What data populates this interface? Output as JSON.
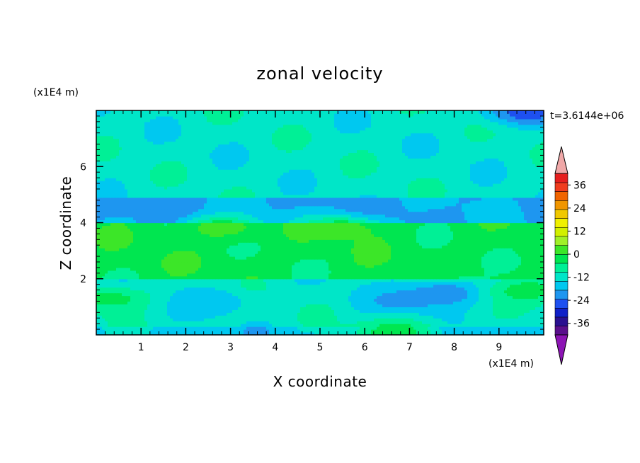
{
  "chart_data": {
    "type": "heatmap",
    "title": "zonal velocity",
    "xlabel": "X coordinate",
    "ylabel": "Z coordinate",
    "x_scale_label": "(x1E4 m)",
    "y_scale_label": "(x1E4 m)",
    "time_label": "t=3.6144e+06",
    "xlim": [
      0,
      10
    ],
    "ylim": [
      0,
      8
    ],
    "x_ticks": [
      "1",
      "2",
      "3",
      "4",
      "5",
      "6",
      "7",
      "8",
      "9"
    ],
    "x_tick_values": [
      1,
      2,
      3,
      4,
      5,
      6,
      7,
      8,
      9
    ],
    "y_ticks": [
      "2",
      "4",
      "6"
    ],
    "y_tick_values": [
      2,
      4,
      6
    ],
    "colorbar": {
      "labels": [
        "36",
        "24",
        "12",
        "0",
        "-12",
        "-24",
        "-36"
      ],
      "label_values": [
        36,
        24,
        12,
        0,
        -12,
        -24,
        -36
      ],
      "min": -42,
      "max": 42,
      "step": 6,
      "colors": [
        "#5a0f8c",
        "#2a1090",
        "#1020c8",
        "#1e50f0",
        "#1e96f0",
        "#00c8f0",
        "#00e6c8",
        "#00f096",
        "#00e650",
        "#3ce628",
        "#a0f028",
        "#d2f000",
        "#f0f000",
        "#f0c800",
        "#f09600",
        "#f06400",
        "#f03c1e",
        "#e61e1e"
      ],
      "over_color": "#f0a8a8",
      "under_color": "#8c14b4"
    },
    "bands": [
      {
        "z_range": [
          0.0,
          0.3
        ],
        "u": -8
      },
      {
        "z_range": [
          0.3,
          2.0
        ],
        "u": -3
      },
      {
        "z_range": [
          2.0,
          4.05
        ],
        "u": 9
      },
      {
        "z_range": [
          4.05,
          4.9
        ],
        "u": -13
      },
      {
        "z_range": [
          4.9,
          8.0
        ],
        "u": -3
      }
    ],
    "features": [
      {
        "x": 2.5,
        "z": 1.2,
        "u": -12
      },
      {
        "x": 6.8,
        "z": 1.2,
        "u": -14
      },
      {
        "x": 7.8,
        "z": 1.5,
        "u": -18
      },
      {
        "x": 2.8,
        "z": 3.8,
        "u": 14
      },
      {
        "x": 5.5,
        "z": 3.8,
        "u": 14
      },
      {
        "x": 9.7,
        "z": 1.6,
        "u": 10
      },
      {
        "x": 0.3,
        "z": 1.3,
        "u": 9
      },
      {
        "x": 6.7,
        "z": 0.1,
        "u": 11
      },
      {
        "x": 9.6,
        "z": 7.95,
        "u": -22
      }
    ]
  }
}
